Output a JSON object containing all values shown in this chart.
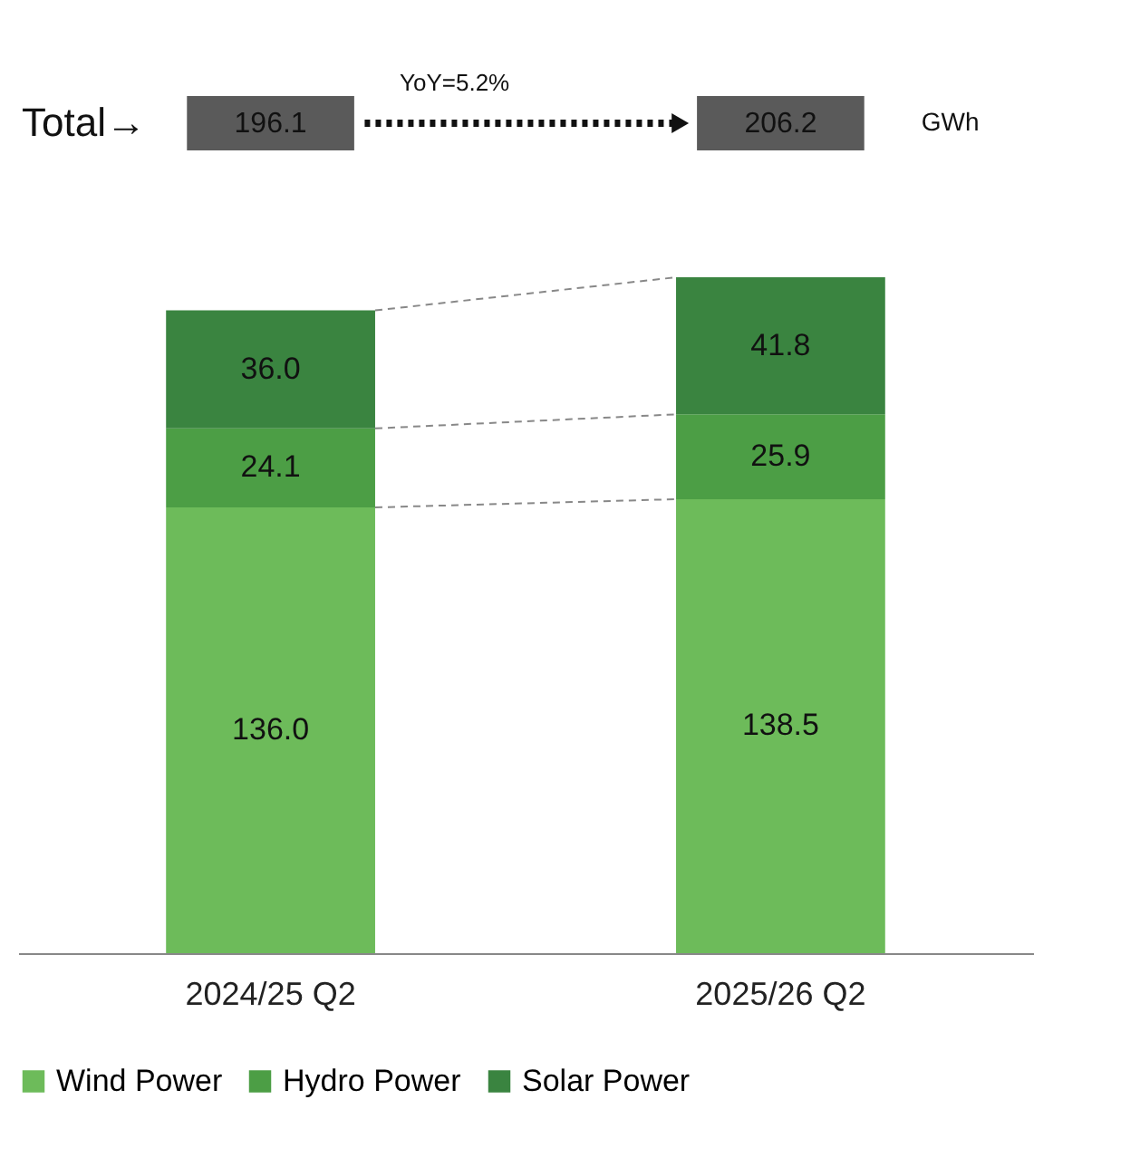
{
  "chart_data": {
    "type": "bar",
    "stacked": true,
    "categories": [
      "2024/25 Q2",
      "2025/26 Q2"
    ],
    "series": [
      {
        "name": "Wind Power",
        "color": "#6dbb5a",
        "values": [
          136.0,
          138.5
        ],
        "value_labels": [
          "136.0",
          "138.5"
        ]
      },
      {
        "name": "Hydro Power",
        "color": "#4c9e45",
        "values": [
          24.1,
          25.9
        ],
        "value_labels": [
          "24.1",
          "25.9"
        ]
      },
      {
        "name": "Solar Power",
        "color": "#3a8440",
        "values": [
          36.0,
          41.8
        ],
        "value_labels": [
          "36.0",
          "41.8"
        ]
      }
    ],
    "annotations": [
      "Total→",
      "196.1",
      "YoY=5.2%",
      "206.2",
      "GWh"
    ],
    "legend": "bottom",
    "grid": false
  }
}
